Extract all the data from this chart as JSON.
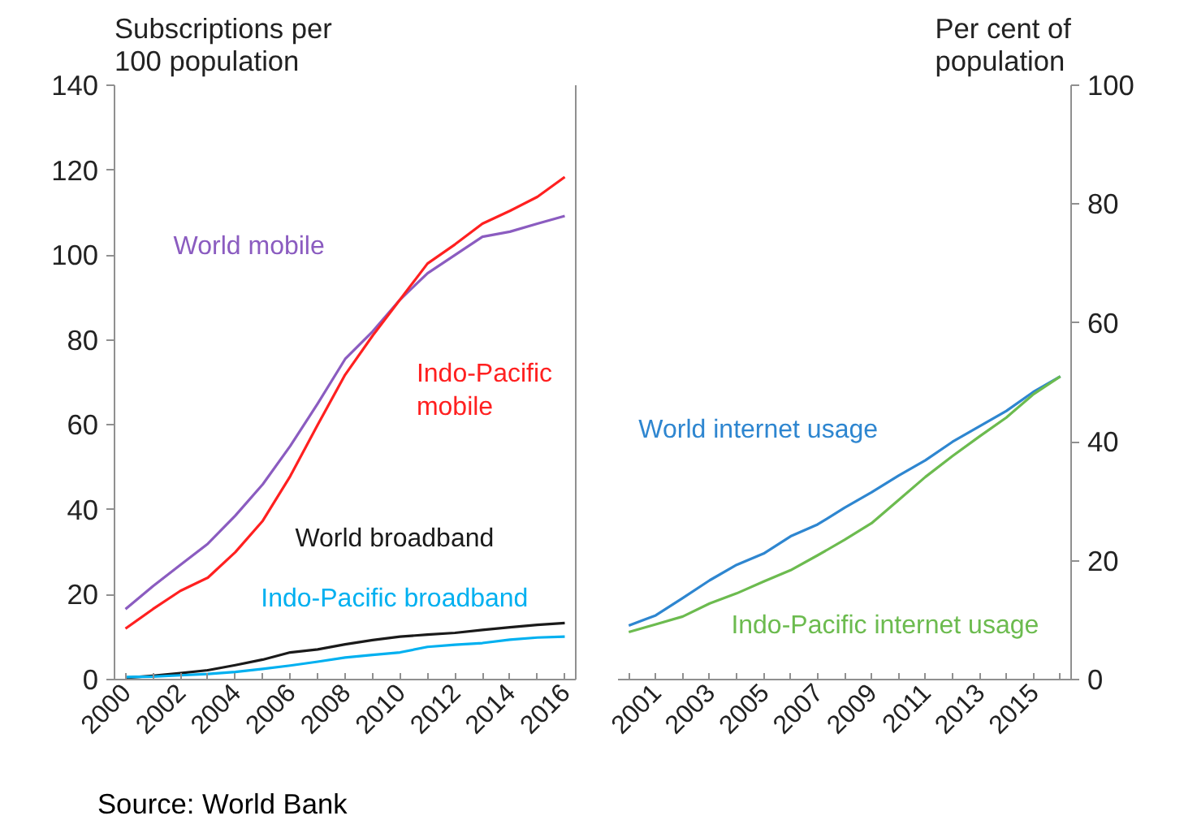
{
  "chart_data": [
    {
      "type": "line",
      "ylabel": "Subscriptions per 100 population",
      "x": [
        2000,
        2001,
        2002,
        2003,
        2004,
        2005,
        2006,
        2007,
        2008,
        2009,
        2010,
        2011,
        2012,
        2013,
        2014,
        2015,
        2016
      ],
      "xlim": [
        1999.6,
        2016.4
      ],
      "xticks": [
        2000,
        {
          "value": 2001,
          "label": null
        },
        2002,
        {
          "value": 2003,
          "label": null
        },
        2004,
        {
          "value": 2005,
          "label": null
        },
        2006,
        {
          "value": 2007,
          "label": null
        },
        2008,
        {
          "value": 2009,
          "label": null
        },
        2010,
        {
          "value": 2011,
          "label": null
        },
        2012,
        {
          "value": 2013,
          "label": null
        },
        2014,
        {
          "value": 2015,
          "label": null
        },
        2016
      ],
      "ylim": [
        0,
        140
      ],
      "yticks": [
        0,
        20,
        40,
        60,
        80,
        100,
        120,
        140
      ],
      "grid": false,
      "series": [
        {
          "name": "World mobile",
          "color": "#8b5cc0",
          "values": [
            16.6,
            22,
            27,
            32,
            38.6,
            46,
            55,
            65,
            75.5,
            82,
            89.5,
            95.7,
            100,
            104.3,
            105.5,
            107.4,
            109.2
          ]
        },
        {
          "name": "Indo-Pacific mobile",
          "color": "#ff2020",
          "values": [
            12,
            16.6,
            20.9,
            24,
            30,
            37.4,
            47.9,
            60,
            71.8,
            81,
            89.5,
            98,
            102.5,
            107.4,
            110.4,
            113.7,
            118.4
          ]
        },
        {
          "name": "World broadband",
          "color": "#1a1a1a",
          "values": [
            0.4,
            0.9,
            1.5,
            2.2,
            3.4,
            4.7,
            6.4,
            7.1,
            8.3,
            9.3,
            10.1,
            10.6,
            11,
            11.7,
            12.3,
            12.9,
            13.3
          ]
        },
        {
          "name": "Indo-Pacific broadband",
          "color": "#00b0f0",
          "values": [
            0.6,
            0.7,
            1,
            1.3,
            1.8,
            2.5,
            3.3,
            4.2,
            5.2,
            5.8,
            6.4,
            7.7,
            8.2,
            8.6,
            9.4,
            9.9,
            10.1
          ]
        }
      ],
      "annotations": [
        "Source: World Bank"
      ]
    },
    {
      "type": "line",
      "ylabel": "Per cent of population",
      "x": [
        2000,
        2001,
        2002,
        2003,
        2004,
        2005,
        2006,
        2007,
        2008,
        2009,
        2010,
        2011,
        2012,
        2013,
        2014,
        2015,
        2016
      ],
      "xlim": [
        1999.6,
        2016.4
      ],
      "xticks": [
        {
          "value": 2000,
          "label": null
        },
        2001,
        {
          "value": 2002,
          "label": null
        },
        2003,
        {
          "value": 2004,
          "label": null
        },
        2005,
        {
          "value": 2006,
          "label": null
        },
        2007,
        {
          "value": 2008,
          "label": null
        },
        2009,
        {
          "value": 2010,
          "label": null
        },
        2011,
        {
          "value": 2012,
          "label": null
        },
        2013,
        {
          "value": 2014,
          "label": null
        },
        2015,
        {
          "value": 2016,
          "label": null
        }
      ],
      "ylim": [
        0,
        100
      ],
      "yticks": [
        0,
        20,
        40,
        60,
        80,
        100
      ],
      "grid": false,
      "series": [
        {
          "name": "World internet usage",
          "color": "#2e86d0",
          "values": [
            9.1,
            10.8,
            13.7,
            16.7,
            19.3,
            21.2,
            24.1,
            26.1,
            28.9,
            31.5,
            34.3,
            36.9,
            40,
            42.6,
            45.2,
            48.4,
            51
          ]
        },
        {
          "name": "Indo-Pacific internet usage",
          "color": "#6cbb4f",
          "values": [
            8,
            9.3,
            10.6,
            12.8,
            14.5,
            16.5,
            18.4,
            20.9,
            23.5,
            26.3,
            30.2,
            34.1,
            37.6,
            40.9,
            44.1,
            48,
            51
          ]
        }
      ]
    }
  ]
}
